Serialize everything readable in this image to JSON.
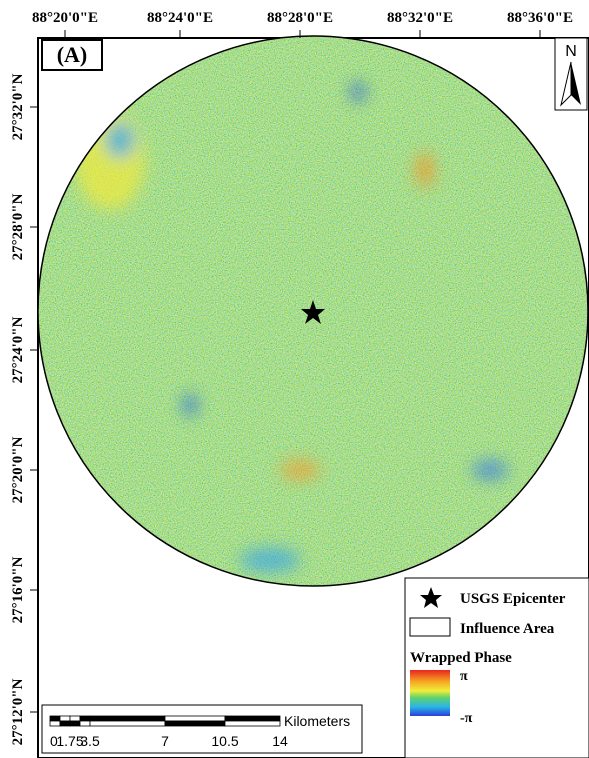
{
  "panel_label": "(A)",
  "longitude_labels": [
    "88°20'0\"E",
    "88°24'0\"E",
    "88°28'0\"E",
    "88°32'0\"E",
    "88°36'0\"E"
  ],
  "latitude_labels": [
    "27°32'0\"N",
    "27°28'0\"N",
    "27°24'0\"N",
    "27°20'0\"N",
    "27°16'0\"N",
    "27°12'0\"N"
  ],
  "north": "N",
  "legend": {
    "epicenter": "USGS Epicenter",
    "influence_area": "Influence Area",
    "phase_title": "Wrapped Phase",
    "phase_max": "π",
    "phase_min": "-π"
  },
  "scale_bar": {
    "unit": "Kilometers",
    "labels": [
      "0",
      "1.75",
      "3.5",
      "7",
      "10.5",
      "14"
    ]
  }
}
